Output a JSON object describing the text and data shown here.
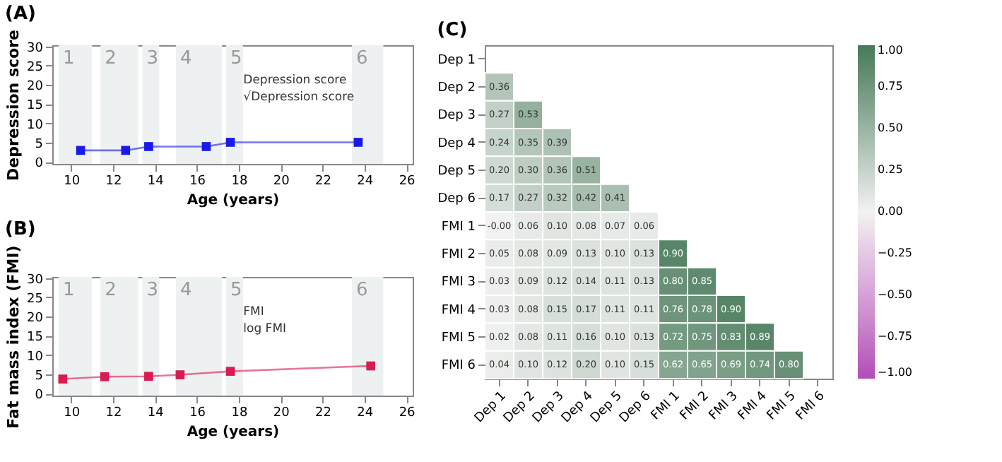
{
  "chart_data": [
    {
      "type": "line",
      "title": "(A)",
      "xlabel": "Age (years)",
      "ylabel": "Depression score",
      "x": [
        10.45,
        12.6,
        13.7,
        16.45,
        17.6,
        23.7
      ],
      "series": [
        {
          "color": "#1a1ae6",
          "values": [
            3.0,
            3.0,
            4.0,
            4.0,
            5.1,
            5.1
          ]
        }
      ],
      "marker": "square",
      "xlim": [
        9.1,
        26.3
      ],
      "xticks": [
        10,
        12,
        14,
        16,
        18,
        20,
        22,
        24,
        26
      ],
      "ylim": [
        -0.5,
        30.3
      ],
      "yticks": [
        0,
        5,
        10,
        15,
        20,
        25,
        30
      ],
      "bands": [
        {
          "axis": "x",
          "from": 9.4,
          "to": 11.0,
          "label": "1",
          "color": "#eef1f1"
        },
        {
          "axis": "x",
          "from": 11.4,
          "to": 13.2,
          "label": "2",
          "color": "#eef1f1"
        },
        {
          "axis": "x",
          "from": 13.4,
          "to": 14.2,
          "label": "3",
          "color": "#eef1f1"
        },
        {
          "axis": "x",
          "from": 15.0,
          "to": 17.2,
          "label": "4",
          "color": "#eef1f1"
        },
        {
          "axis": "x",
          "from": 17.4,
          "to": 18.2,
          "label": "5",
          "color": "#eef1f1"
        },
        {
          "axis": "x",
          "from": 23.4,
          "to": 24.9,
          "label": "6",
          "color": "#eef1f1"
        }
      ],
      "annotations": [
        "Depression score",
        "√Depression score"
      ]
    },
    {
      "type": "line",
      "title": "(B)",
      "xlabel": "Age (years)",
      "ylabel": "Fat mass index (FMI)",
      "x": [
        9.6,
        11.6,
        13.7,
        15.2,
        17.6,
        24.3
      ],
      "series": [
        {
          "color": "#d81b50",
          "values": [
            3.8,
            4.4,
            4.5,
            4.9,
            5.8,
            7.2
          ]
        }
      ],
      "marker": "square",
      "xlim": [
        9.1,
        26.3
      ],
      "xticks": [
        10,
        12,
        14,
        16,
        18,
        20,
        22,
        24,
        26
      ],
      "ylim": [
        -0.5,
        30.3
      ],
      "yticks": [
        0,
        5,
        10,
        15,
        20,
        25,
        30
      ],
      "bands": [
        {
          "axis": "x",
          "from": 9.4,
          "to": 11.0,
          "label": "1",
          "color": "#eef1f1"
        },
        {
          "axis": "x",
          "from": 11.4,
          "to": 13.2,
          "label": "2",
          "color": "#eef1f1"
        },
        {
          "axis": "x",
          "from": 13.4,
          "to": 14.2,
          "label": "3",
          "color": "#eef1f1"
        },
        {
          "axis": "x",
          "from": 15.0,
          "to": 17.2,
          "label": "4",
          "color": "#eef1f1"
        },
        {
          "axis": "x",
          "from": 17.4,
          "to": 18.2,
          "label": "5",
          "color": "#eef1f1"
        },
        {
          "axis": "x",
          "from": 23.4,
          "to": 24.9,
          "label": "6",
          "color": "#eef1f1"
        }
      ],
      "annotations": [
        "FMI",
        "log FMI"
      ]
    },
    {
      "type": "heatmap",
      "title": "(C)",
      "data_labels": true,
      "categories": [
        "Dep 1",
        "Dep 2",
        "Dep 3",
        "Dep 4",
        "Dep 5",
        "Dep 6",
        "FMI 1",
        "FMI 2",
        "FMI 3",
        "FMI 4",
        "FMI 5",
        "FMI 6"
      ],
      "y_categories": [
        "Dep 1",
        "Dep 2",
        "Dep 3",
        "Dep 4",
        "Dep 5",
        "Dep 6",
        "FMI 1",
        "FMI 2",
        "FMI 3",
        "FMI 4",
        "FMI 5",
        "FMI 6"
      ],
      "cells": [
        [
          null,
          null,
          null,
          null,
          null,
          null,
          null,
          null,
          null,
          null,
          null,
          null
        ],
        [
          0.36,
          null,
          null,
          null,
          null,
          null,
          null,
          null,
          null,
          null,
          null,
          null
        ],
        [
          0.27,
          0.53,
          null,
          null,
          null,
          null,
          null,
          null,
          null,
          null,
          null,
          null
        ],
        [
          0.24,
          0.35,
          0.39,
          null,
          null,
          null,
          null,
          null,
          null,
          null,
          null,
          null
        ],
        [
          0.2,
          0.3,
          0.36,
          0.51,
          null,
          null,
          null,
          null,
          null,
          null,
          null,
          null
        ],
        [
          0.17,
          0.27,
          0.32,
          0.42,
          0.41,
          null,
          null,
          null,
          null,
          null,
          null,
          null
        ],
        [
          -0.0,
          0.06,
          0.1,
          0.08,
          0.07,
          0.06,
          null,
          null,
          null,
          null,
          null,
          null
        ],
        [
          0.05,
          0.08,
          0.09,
          0.13,
          0.1,
          0.13,
          0.9,
          null,
          null,
          null,
          null,
          null
        ],
        [
          0.03,
          0.09,
          0.12,
          0.14,
          0.11,
          0.13,
          0.8,
          0.85,
          null,
          null,
          null,
          null
        ],
        [
          0.03,
          0.08,
          0.15,
          0.17,
          0.11,
          0.11,
          0.76,
          0.78,
          0.9,
          null,
          null,
          null
        ],
        [
          0.02,
          0.08,
          0.11,
          0.16,
          0.1,
          0.13,
          0.72,
          0.75,
          0.83,
          0.89,
          null,
          null
        ],
        [
          0.04,
          0.1,
          0.12,
          0.2,
          0.1,
          0.15,
          0.62,
          0.65,
          0.69,
          0.74,
          0.8,
          null
        ]
      ],
      "cell_labels": [
        [
          null,
          null,
          null,
          null,
          null,
          null,
          null,
          null,
          null,
          null,
          null,
          null
        ],
        [
          "0.36",
          null,
          null,
          null,
          null,
          null,
          null,
          null,
          null,
          null,
          null,
          null
        ],
        [
          "0.27",
          "0.53",
          null,
          null,
          null,
          null,
          null,
          null,
          null,
          null,
          null,
          null
        ],
        [
          "0.24",
          "0.35",
          "0.39",
          null,
          null,
          null,
          null,
          null,
          null,
          null,
          null,
          null
        ],
        [
          "0.20",
          "0.30",
          "0.36",
          "0.51",
          null,
          null,
          null,
          null,
          null,
          null,
          null,
          null
        ],
        [
          "0.17",
          "0.27",
          "0.32",
          "0.42",
          "0.41",
          null,
          null,
          null,
          null,
          null,
          null,
          null
        ],
        [
          "-0.00",
          "0.06",
          "0.10",
          "0.08",
          "0.07",
          "0.06",
          null,
          null,
          null,
          null,
          null,
          null
        ],
        [
          "0.05",
          "0.08",
          "0.09",
          "0.13",
          "0.10",
          "0.13",
          "0.90",
          null,
          null,
          null,
          null,
          null
        ],
        [
          "0.03",
          "0.09",
          "0.12",
          "0.14",
          "0.11",
          "0.13",
          "0.80",
          "0.85",
          null,
          null,
          null,
          null
        ],
        [
          "0.03",
          "0.08",
          "0.15",
          "0.17",
          "0.11",
          "0.11",
          "0.76",
          "0.78",
          "0.90",
          null,
          null,
          null
        ],
        [
          "0.02",
          "0.08",
          "0.11",
          "0.16",
          "0.10",
          "0.13",
          "0.72",
          "0.75",
          "0.83",
          "0.89",
          null,
          null
        ],
        [
          "0.04",
          "0.10",
          "0.12",
          "0.20",
          "0.10",
          "0.15",
          "0.62",
          "0.65",
          "0.69",
          "0.74",
          "0.80",
          null
        ]
      ],
      "clim": [
        -1.0,
        1.0
      ],
      "cticks": [
        {
          "value": -1.0,
          "label": "−1.00"
        },
        {
          "value": -0.75,
          "label": "−0.75"
        },
        {
          "value": -0.5,
          "label": "−0.50"
        },
        {
          "value": -0.25,
          "label": "−0.25"
        },
        {
          "value": 0.0,
          "label": "0.00"
        },
        {
          "value": 0.25,
          "label": "0.25"
        },
        {
          "value": 0.5,
          "label": "0.50"
        },
        {
          "value": 0.75,
          "label": "0.75"
        },
        {
          "value": 1.0,
          "label": "1.00"
        }
      ]
    }
  ]
}
